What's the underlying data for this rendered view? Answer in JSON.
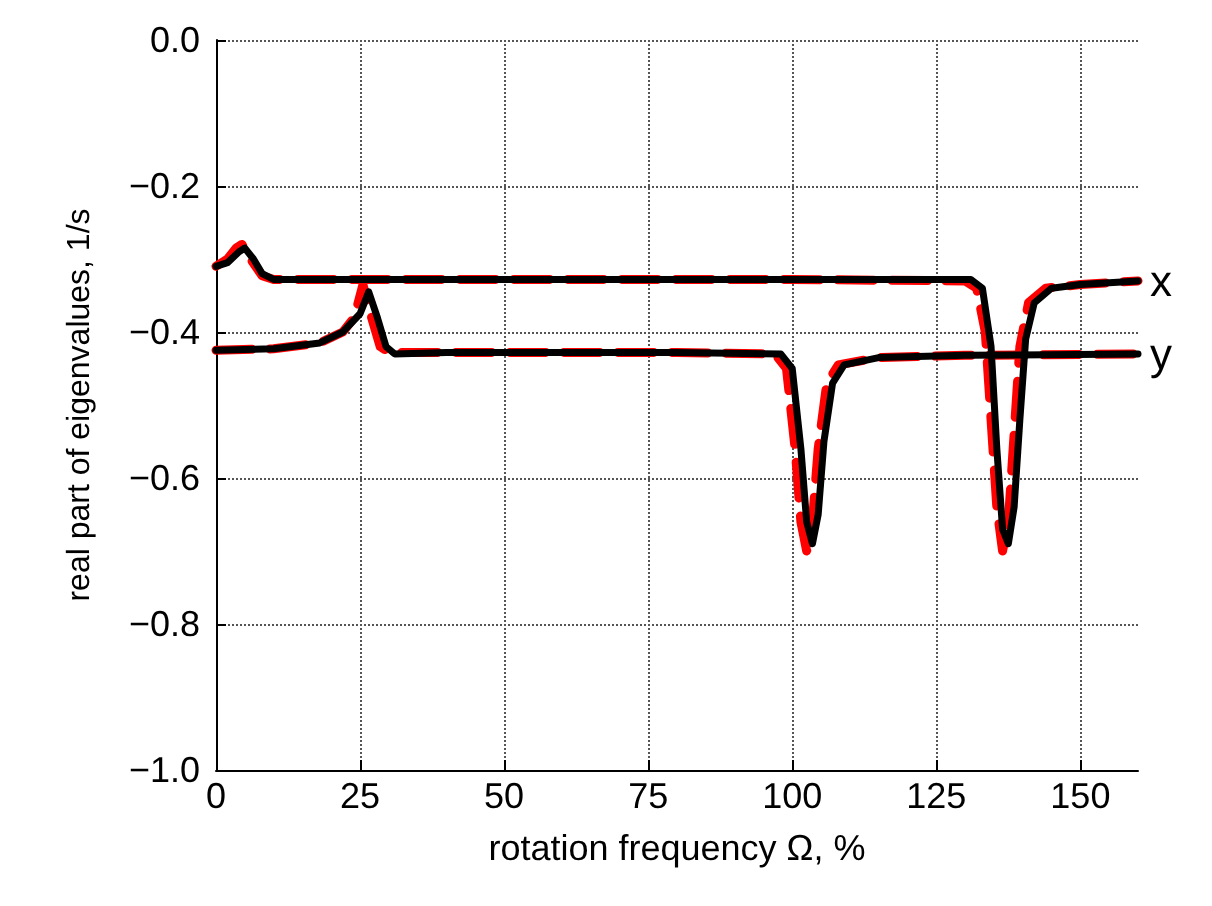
{
  "chart_data": {
    "type": "line",
    "xlabel": "rotation frequency Ω, %",
    "ylabel": "real part of eigenvalues, 1/s",
    "xlim": [
      0,
      160
    ],
    "xticks": [
      0,
      25,
      50,
      75,
      100,
      125,
      150
    ],
    "ylim": [
      -1.0,
      0.0
    ],
    "yticks": [
      {
        "value": -1.0,
        "label": "−1.0"
      },
      {
        "value": -0.8,
        "label": "−0.8"
      },
      {
        "value": -0.6,
        "label": "−0.6"
      },
      {
        "value": -0.4,
        "label": "−0.4"
      },
      {
        "value": -0.2,
        "label": "−0.2"
      },
      {
        "value": 0.0,
        "label": "0.0"
      }
    ],
    "grid": true,
    "legend": false,
    "marker": "none",
    "series": [
      {
        "color": "#ff0000",
        "line_style": "dashed",
        "x": [
          0,
          2,
          3.5,
          4.5,
          6,
          8,
          10,
          20,
          60,
          100,
          130,
          132,
          133.5,
          134.5,
          135.5,
          136.5,
          137.5,
          138.5,
          139.5,
          141,
          144,
          150,
          160
        ],
        "values": [
          -0.31,
          -0.3,
          -0.285,
          -0.28,
          -0.3,
          -0.323,
          -0.328,
          -0.328,
          -0.328,
          -0.328,
          -0.33,
          -0.34,
          -0.4,
          -0.52,
          -0.64,
          -0.7,
          -0.66,
          -0.54,
          -0.42,
          -0.36,
          -0.34,
          -0.335,
          -0.33
        ]
      },
      {
        "color": "#ff0000",
        "line_style": "dashed",
        "x": [
          0,
          10,
          18,
          22,
          24,
          25.5,
          27,
          28.5,
          30,
          40,
          80,
          97,
          99,
          100.5,
          101.5,
          102.5,
          103.5,
          104.5,
          106,
          108,
          115,
          130,
          160
        ],
        "values": [
          -0.425,
          -0.423,
          -0.415,
          -0.4,
          -0.38,
          -0.335,
          -0.38,
          -0.42,
          -0.428,
          -0.428,
          -0.428,
          -0.43,
          -0.45,
          -0.56,
          -0.66,
          -0.7,
          -0.66,
          -0.56,
          -0.47,
          -0.445,
          -0.435,
          -0.432,
          -0.43
        ]
      },
      {
        "name": "x",
        "color": "#000000",
        "line_style": "solid",
        "x": [
          0,
          2,
          4,
          5,
          6.5,
          8,
          10,
          20,
          60,
          100,
          131,
          133,
          134.5,
          135.5,
          136.5,
          137.5,
          138.5,
          139.5,
          140.5,
          142,
          145,
          150,
          160
        ],
        "values": [
          -0.31,
          -0.305,
          -0.29,
          -0.285,
          -0.3,
          -0.32,
          -0.328,
          -0.328,
          -0.328,
          -0.328,
          -0.328,
          -0.34,
          -0.42,
          -0.56,
          -0.67,
          -0.69,
          -0.64,
          -0.52,
          -0.41,
          -0.36,
          -0.34,
          -0.335,
          -0.33
        ]
      },
      {
        "name": "y",
        "color": "#000000",
        "line_style": "solid",
        "x": [
          0,
          10,
          18,
          22,
          25,
          26.5,
          28,
          29.5,
          31,
          40,
          80,
          98,
          100,
          101.5,
          102.5,
          103.5,
          104.5,
          105.5,
          107,
          109,
          115,
          130,
          160
        ],
        "values": [
          -0.425,
          -0.423,
          -0.415,
          -0.4,
          -0.375,
          -0.345,
          -0.38,
          -0.42,
          -0.43,
          -0.428,
          -0.428,
          -0.43,
          -0.45,
          -0.56,
          -0.66,
          -0.69,
          -0.65,
          -0.55,
          -0.47,
          -0.445,
          -0.435,
          -0.432,
          -0.43
        ]
      }
    ]
  }
}
